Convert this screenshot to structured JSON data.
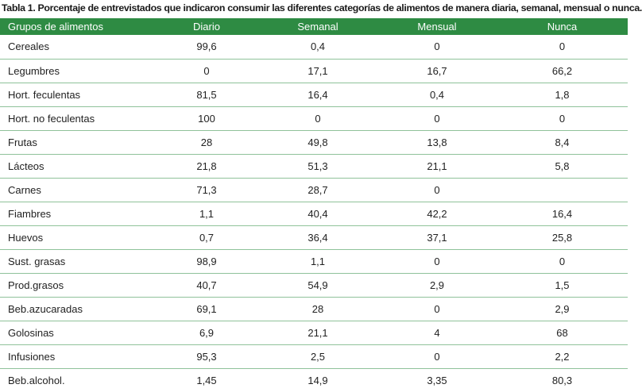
{
  "caption": "Tabla 1. Porcentaje de entrevistados que indicaron consumir las diferentes  categorías de alimentos de manera diaria, semanal, mensual o nunca.",
  "header_color": "#2e8b43",
  "row_divider_color": "#8fc29a",
  "columns": [
    "Grupos de alimentos",
    "Diario",
    "Semanal",
    "Mensual",
    "Nunca"
  ],
  "rows": [
    [
      "Cereales",
      "99,6",
      "0,4",
      "0",
      "0"
    ],
    [
      "Legumbres",
      "0",
      "17,1",
      "16,7",
      "66,2"
    ],
    [
      "Hort. feculentas",
      "81,5",
      "16,4",
      "0,4",
      "1,8"
    ],
    [
      "Hort. no feculentas",
      "100",
      "0",
      "0",
      "0"
    ],
    [
      "Frutas",
      "28",
      "49,8",
      "13,8",
      "8,4"
    ],
    [
      "Lácteos",
      "21,8",
      "51,3",
      "21,1",
      "5,8"
    ],
    [
      "Carnes",
      "71,3",
      "28,7",
      "0",
      ""
    ],
    [
      "Fiambres",
      "1,1",
      "40,4",
      "42,2",
      "16,4"
    ],
    [
      "Huevos",
      "0,7",
      "36,4",
      "37,1",
      "25,8"
    ],
    [
      "Sust. grasas",
      "98,9",
      "1,1",
      "0",
      "0"
    ],
    [
      "Prod.grasos",
      "40,7",
      "54,9",
      "2,9",
      "1,5"
    ],
    [
      "Beb.azucaradas",
      "69,1",
      "28",
      "0",
      "2,9"
    ],
    [
      "Golosinas",
      "6,9",
      "21,1",
      "4",
      "68"
    ],
    [
      "Infusiones",
      "95,3",
      "2,5",
      "0",
      "2,2"
    ],
    [
      "Beb.alcohol.",
      "1,45",
      "14,9",
      "3,35",
      "80,3"
    ]
  ]
}
